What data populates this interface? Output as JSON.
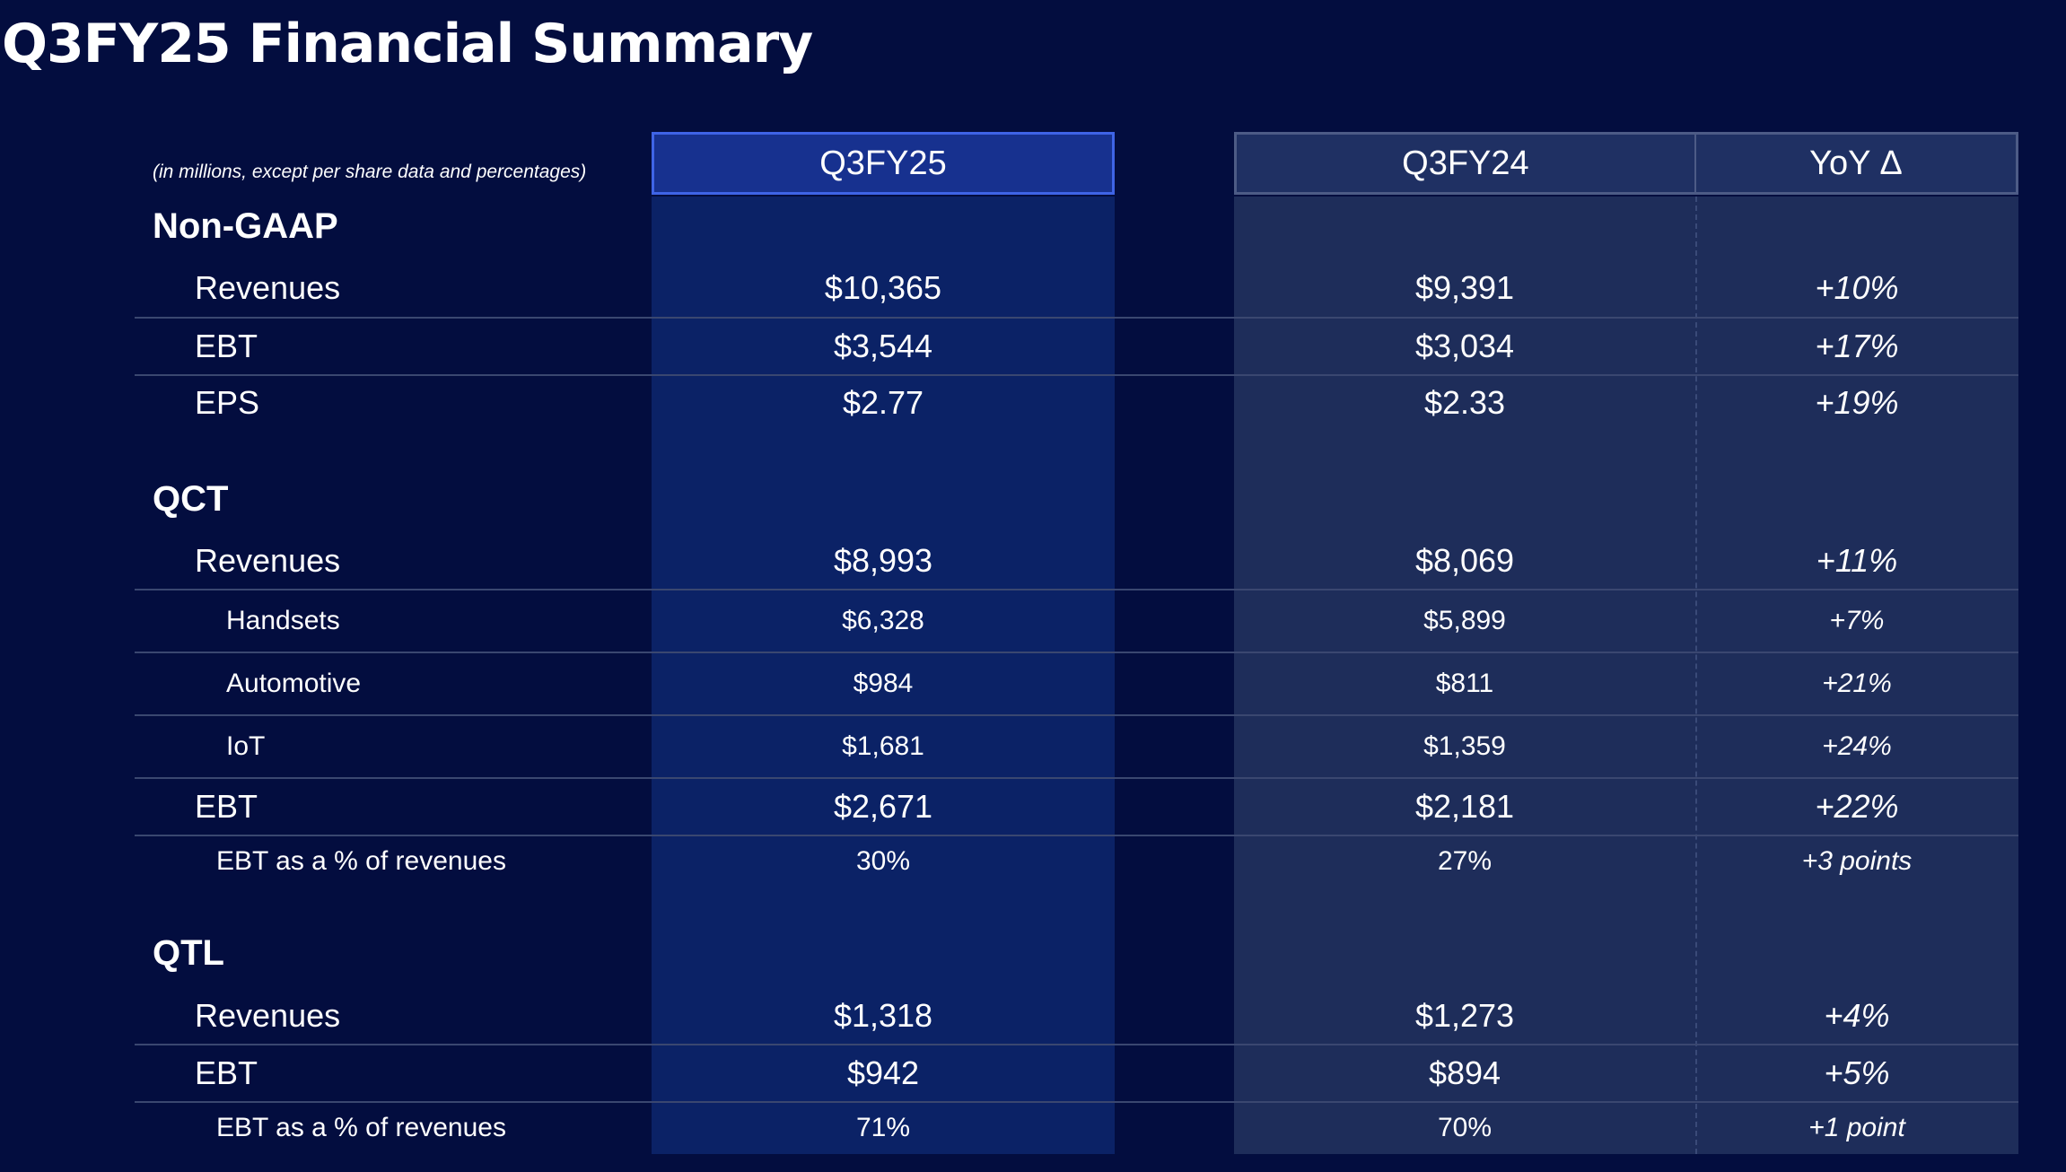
{
  "title": "Q3FY25 Financial Summary",
  "note": "(in millions, except per share data and percentages)",
  "columns": {
    "current": "Q3FY25",
    "prior": "Q3FY24",
    "change": "YoY Δ"
  },
  "sections": {
    "nongaap": {
      "title": "Non-GAAP",
      "rows": [
        {
          "label": "Revenues",
          "current": "$10,365",
          "prior": "$9,391",
          "change": "+10%"
        },
        {
          "label": "EBT",
          "current": "$3,544",
          "prior": "$3,034",
          "change": "+17%"
        },
        {
          "label": "EPS",
          "current": "$2.77",
          "prior": "$2.33",
          "change": "+19%"
        }
      ]
    },
    "qct": {
      "title": "QCT",
      "rows": [
        {
          "label": "Revenues",
          "current": "$8,993",
          "prior": "$8,069",
          "change": "+11%"
        },
        {
          "label": "Handsets",
          "current": "$6,328",
          "prior": "$5,899",
          "change": "+7%"
        },
        {
          "label": "Automotive",
          "current": "$984",
          "prior": "$811",
          "change": "+21%"
        },
        {
          "label": "IoT",
          "current": "$1,681",
          "prior": "$1,359",
          "change": "+24%"
        },
        {
          "label": "EBT",
          "current": "$2,671",
          "prior": "$2,181",
          "change": "+22%"
        },
        {
          "label": "EBT as a % of revenues",
          "current": "30%",
          "prior": "27%",
          "change": "+3 points"
        }
      ]
    },
    "qtl": {
      "title": "QTL",
      "rows": [
        {
          "label": "Revenues",
          "current": "$1,318",
          "prior": "$1,273",
          "change": "+4%"
        },
        {
          "label": "EBT",
          "current": "$942",
          "prior": "$894",
          "change": "+5%"
        },
        {
          "label": "EBT as a % of revenues",
          "current": "71%",
          "prior": "70%",
          "change": "+1 point"
        }
      ]
    }
  }
}
